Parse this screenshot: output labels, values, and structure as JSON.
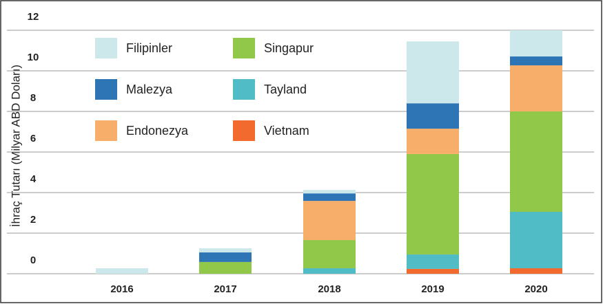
{
  "chart_data": {
    "type": "stacked_bar",
    "y_label": "İhraç Tutarı (Milyar ABD Doları)",
    "categories": [
      "2016",
      "2017",
      "2018",
      "2019",
      "2020"
    ],
    "series": [
      {
        "name": "Vietnam",
        "color": "#f26a2e",
        "values": [
          0,
          0,
          0,
          0.24,
          0.27
        ]
      },
      {
        "name": "Tayland",
        "color": "#4fbcc6",
        "values": [
          0,
          0,
          0.27,
          0.71,
          2.78
        ]
      },
      {
        "name": "Singapur",
        "color": "#92c84a",
        "values": [
          0,
          0.58,
          1.39,
          4.95,
          4.95
        ]
      },
      {
        "name": "Endonezya",
        "color": "#f8ae6b",
        "values": [
          0,
          0,
          1.93,
          1.25,
          2.27
        ]
      },
      {
        "name": "Malezya",
        "color": "#2e75b6",
        "values": [
          0,
          0.47,
          0.37,
          1.25,
          0.44
        ]
      },
      {
        "name": "Filipinler",
        "color": "#cde8ea",
        "values": [
          0.27,
          0.2,
          0.17,
          3.05,
          1.29
        ]
      }
    ],
    "ylim": [
      0,
      12
    ],
    "yticks": [
      0,
      2,
      4,
      6,
      8,
      10,
      12
    ],
    "grid": true
  }
}
